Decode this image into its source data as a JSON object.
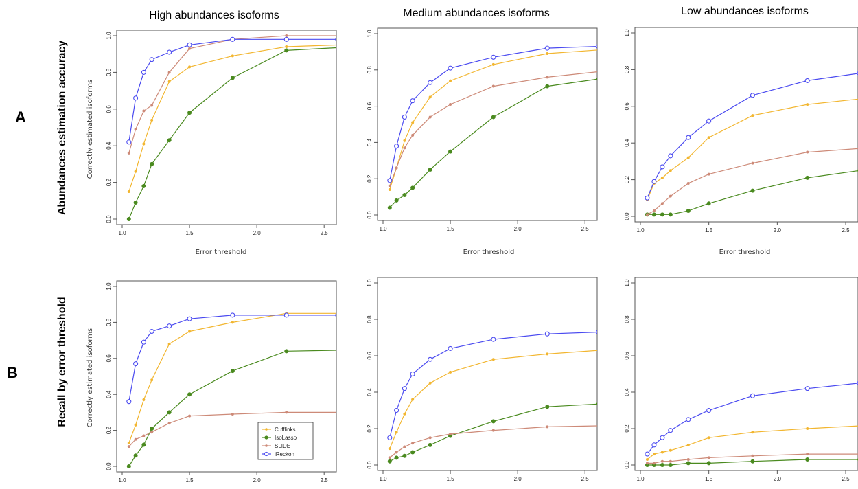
{
  "figure": {
    "columns": [
      "High abundances isoforms",
      "Medium abundances isoforms",
      "Low abundances isoforms"
    ],
    "rows": [
      {
        "letter": "A",
        "title": "Abundances estimation accuracy"
      },
      {
        "letter": "B",
        "title": "Recall by error threshold"
      }
    ],
    "xlabel": "Error threshold",
    "ylabel": "Correctly estimated isoforms"
  },
  "chart_data": [
    {
      "type": "line",
      "row": 0,
      "col": 0,
      "title": "High abundances isoforms",
      "xlabel": "Error threshold",
      "ylabel": "Correctly estimated isoforms",
      "xlim": [
        1.0,
        2.55
      ],
      "ylim": [
        0,
        1.0
      ],
      "xticks": [
        "1.0",
        "1.5",
        "2.0",
        "2.5"
      ],
      "yticks": [
        "0.0",
        "0.2",
        "0.4",
        "0.6",
        "0.8",
        "1.0"
      ],
      "x": [
        1.05,
        1.1,
        1.16,
        1.22,
        1.35,
        1.5,
        1.82,
        2.22,
        2.6
      ],
      "series": [
        {
          "name": "Cufflinks",
          "values": [
            0.15,
            0.26,
            0.41,
            0.54,
            0.75,
            0.83,
            0.89,
            0.94,
            0.95
          ]
        },
        {
          "name": "IsoLasso",
          "values": [
            0.0,
            0.09,
            0.18,
            0.3,
            0.43,
            0.58,
            0.77,
            0.92,
            0.935
          ]
        },
        {
          "name": "SLIDE",
          "values": [
            0.36,
            0.49,
            0.59,
            0.62,
            0.8,
            0.93,
            0.98,
            1.0,
            1.0
          ]
        },
        {
          "name": "iReckon",
          "values": [
            0.42,
            0.66,
            0.8,
            0.87,
            0.91,
            0.95,
            0.98,
            0.98,
            0.98
          ]
        }
      ],
      "legend": false
    },
    {
      "type": "line",
      "row": 0,
      "col": 1,
      "title": "Medium abundances isoforms",
      "xlabel": "Error threshold",
      "ylabel": "",
      "xlim": [
        1.0,
        2.55
      ],
      "ylim": [
        0,
        1.0
      ],
      "xticks": [
        "1.0",
        "1.5",
        "2.0",
        "2.5"
      ],
      "yticks": [
        "0.0",
        "0.2",
        "0.4",
        "0.6",
        "0.8",
        "1.0"
      ],
      "x": [
        1.05,
        1.1,
        1.16,
        1.22,
        1.35,
        1.5,
        1.82,
        2.22,
        2.6
      ],
      "series": [
        {
          "name": "Cufflinks",
          "values": [
            0.14,
            0.26,
            0.41,
            0.51,
            0.65,
            0.74,
            0.83,
            0.89,
            0.91
          ]
        },
        {
          "name": "IsoLasso",
          "values": [
            0.04,
            0.08,
            0.11,
            0.15,
            0.25,
            0.35,
            0.54,
            0.71,
            0.75
          ]
        },
        {
          "name": "SLIDE",
          "values": [
            0.16,
            0.26,
            0.37,
            0.44,
            0.54,
            0.61,
            0.71,
            0.76,
            0.79
          ]
        },
        {
          "name": "iReckon",
          "values": [
            0.19,
            0.38,
            0.54,
            0.63,
            0.73,
            0.81,
            0.87,
            0.92,
            0.93
          ]
        }
      ],
      "legend": false
    },
    {
      "type": "line",
      "row": 0,
      "col": 2,
      "title": "Low abundances isoforms",
      "xlabel": "Error threshold",
      "ylabel": "",
      "xlim": [
        1.0,
        2.55
      ],
      "ylim": [
        0,
        1.0
      ],
      "xticks": [
        "1.0",
        "1.5",
        "2.0",
        "2.5"
      ],
      "yticks": [
        "0.0",
        "0.2",
        "0.4",
        "0.6",
        "0.8",
        "1.0"
      ],
      "x": [
        1.05,
        1.1,
        1.16,
        1.22,
        1.35,
        1.5,
        1.82,
        2.22,
        2.6
      ],
      "series": [
        {
          "name": "Cufflinks",
          "values": [
            0.09,
            0.18,
            0.21,
            0.25,
            0.32,
            0.43,
            0.55,
            0.61,
            0.64
          ]
        },
        {
          "name": "IsoLasso",
          "values": [
            0.01,
            0.01,
            0.01,
            0.01,
            0.03,
            0.07,
            0.14,
            0.21,
            0.25
          ]
        },
        {
          "name": "SLIDE",
          "values": [
            0.01,
            0.03,
            0.07,
            0.11,
            0.18,
            0.23,
            0.29,
            0.35,
            0.37
          ]
        },
        {
          "name": "iReckon",
          "values": [
            0.1,
            0.19,
            0.27,
            0.33,
            0.43,
            0.52,
            0.66,
            0.74,
            0.78
          ]
        }
      ],
      "legend": false
    },
    {
      "type": "line",
      "row": 1,
      "col": 0,
      "title": "",
      "xlabel": "",
      "ylabel": "Correctly estimated isoforms",
      "xlim": [
        1.0,
        2.55
      ],
      "ylim": [
        0,
        1.0
      ],
      "xticks": [
        "1.0",
        "1.5",
        "2.0",
        "2.5"
      ],
      "yticks": [
        "0.0",
        "0.2",
        "0.4",
        "0.6",
        "0.8",
        "1.0"
      ],
      "x": [
        1.05,
        1.1,
        1.16,
        1.22,
        1.35,
        1.5,
        1.82,
        2.22,
        2.6
      ],
      "series": [
        {
          "name": "Cufflinks",
          "values": [
            0.13,
            0.23,
            0.37,
            0.48,
            0.68,
            0.75,
            0.8,
            0.85,
            0.85
          ]
        },
        {
          "name": "IsoLasso",
          "values": [
            0.0,
            0.06,
            0.12,
            0.21,
            0.3,
            0.4,
            0.53,
            0.64,
            0.645
          ]
        },
        {
          "name": "SLIDE",
          "values": [
            0.11,
            0.15,
            0.17,
            0.19,
            0.24,
            0.28,
            0.29,
            0.3,
            0.3
          ]
        },
        {
          "name": "iReckon",
          "values": [
            0.36,
            0.57,
            0.69,
            0.75,
            0.78,
            0.82,
            0.84,
            0.84,
            0.84
          ]
        }
      ],
      "legend": true
    },
    {
      "type": "line",
      "row": 1,
      "col": 1,
      "title": "",
      "xlabel": "",
      "ylabel": "",
      "xlim": [
        1.0,
        2.55
      ],
      "ylim": [
        0,
        1.0
      ],
      "xticks": [
        "1.0",
        "1.5",
        "2.0",
        "2.5"
      ],
      "yticks": [
        "0.0",
        "0.2",
        "0.4",
        "0.6",
        "0.8",
        "1.0"
      ],
      "x": [
        1.05,
        1.1,
        1.16,
        1.22,
        1.35,
        1.5,
        1.82,
        2.22,
        2.6
      ],
      "series": [
        {
          "name": "Cufflinks",
          "values": [
            0.09,
            0.18,
            0.28,
            0.36,
            0.45,
            0.51,
            0.58,
            0.61,
            0.63
          ]
        },
        {
          "name": "IsoLasso",
          "values": [
            0.02,
            0.04,
            0.05,
            0.07,
            0.11,
            0.16,
            0.24,
            0.32,
            0.335
          ]
        },
        {
          "name": "SLIDE",
          "values": [
            0.04,
            0.07,
            0.1,
            0.12,
            0.15,
            0.17,
            0.19,
            0.21,
            0.215
          ]
        },
        {
          "name": "iReckon",
          "values": [
            0.15,
            0.3,
            0.42,
            0.5,
            0.58,
            0.64,
            0.69,
            0.72,
            0.73
          ]
        }
      ],
      "legend": false
    },
    {
      "type": "line",
      "row": 1,
      "col": 2,
      "title": "",
      "xlabel": "",
      "ylabel": "",
      "xlim": [
        1.0,
        2.55
      ],
      "ylim": [
        0,
        1.0
      ],
      "xticks": [
        "1.0",
        "1.5",
        "2.0",
        "2.5"
      ],
      "yticks": [
        "0.0",
        "0.2",
        "0.4",
        "0.6",
        "0.8",
        "1.0"
      ],
      "x": [
        1.05,
        1.1,
        1.16,
        1.22,
        1.35,
        1.5,
        1.82,
        2.22,
        2.6
      ],
      "series": [
        {
          "name": "Cufflinks",
          "values": [
            0.03,
            0.06,
            0.07,
            0.08,
            0.11,
            0.15,
            0.18,
            0.2,
            0.215
          ]
        },
        {
          "name": "IsoLasso",
          "values": [
            0.0,
            0.0,
            0.0,
            0.0,
            0.01,
            0.01,
            0.02,
            0.03,
            0.03
          ]
        },
        {
          "name": "SLIDE",
          "values": [
            0.01,
            0.01,
            0.02,
            0.02,
            0.03,
            0.04,
            0.05,
            0.06,
            0.06
          ]
        },
        {
          "name": "iReckon",
          "values": [
            0.06,
            0.11,
            0.15,
            0.19,
            0.25,
            0.3,
            0.38,
            0.42,
            0.45
          ]
        }
      ],
      "legend": false
    }
  ],
  "legend": {
    "entries": [
      "Cufflinks",
      "IsoLasso",
      "SLIDE",
      "iReckon"
    ]
  },
  "colors": {
    "Cufflinks": "#f2b630",
    "IsoLasso": "#4a8a1f",
    "SLIDE": "#cd8a78",
    "iReckon": "#4a4af0",
    "axis": "#555555"
  }
}
